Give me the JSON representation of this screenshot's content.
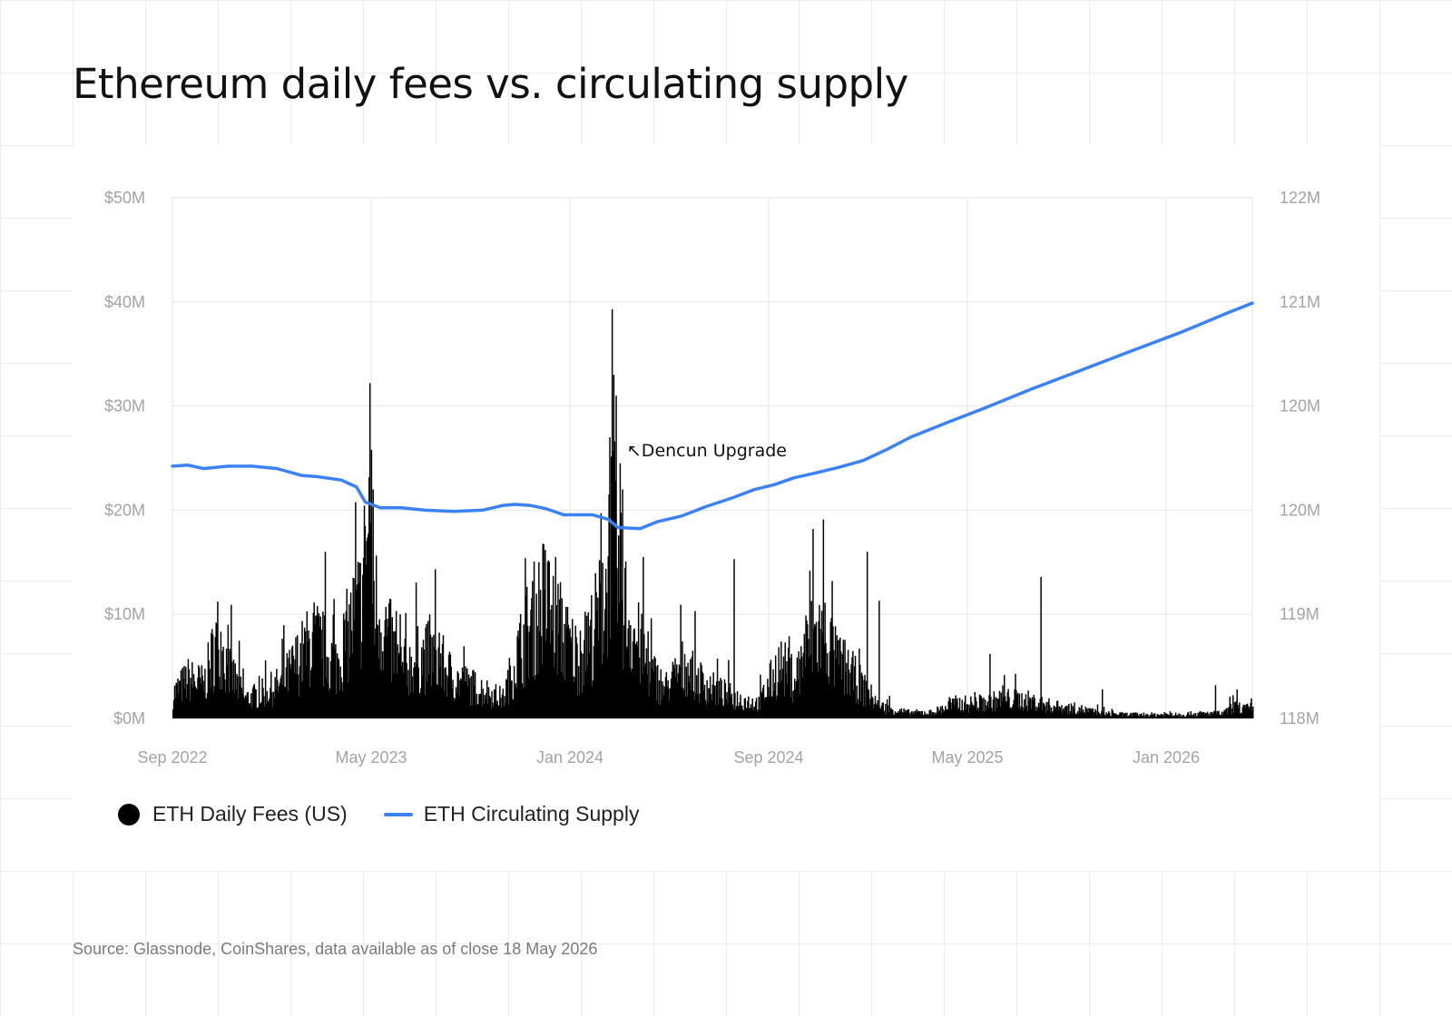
{
  "title": "Ethereum daily fees vs. circulating supply",
  "source": "Source: Glassnode, CoinShares, data available as of close 18 May 2026",
  "annotation": {
    "text": "↖Dencun Upgrade",
    "date": "2024-03-13"
  },
  "legend": {
    "fees_label": "ETH Daily Fees (US)",
    "supply_label": "ETH Circulating Supply"
  },
  "colors": {
    "fees": "#000000",
    "supply": "#3b82f6",
    "grid": "#e6e6e6",
    "tick": "#a3a3a3"
  },
  "chart_data": {
    "type": "bar+line",
    "x_ticks": [
      "Sep 2022",
      "May 2023",
      "Jan 2024",
      "Sep 2024",
      "May 2025",
      "Jan 2026"
    ],
    "x_range": [
      "2022-09-01",
      "2026-05-18"
    ],
    "y_left": {
      "label": "",
      "ticks": [
        "$0M",
        "$10M",
        "$20M",
        "$30M",
        "$40M",
        "$50M"
      ],
      "range": [
        0,
        50
      ]
    },
    "y_right": {
      "label": "",
      "ticks": [
        "118M",
        "119M",
        "120M",
        "120M",
        "121M",
        "122M"
      ],
      "range": [
        118,
        122.5
      ]
    },
    "grid": true,
    "legend_position": "bottom-left",
    "series": [
      {
        "name": "ETH Daily Fees (US)",
        "type": "bar",
        "axis": "left",
        "unit": "$M",
        "keypoints": [
          [
            "2022-09-01",
            2.5
          ],
          [
            "2022-09-20",
            4.0
          ],
          [
            "2022-10-10",
            3.5
          ],
          [
            "2022-10-28",
            8.5
          ],
          [
            "2022-11-10",
            5.0
          ],
          [
            "2022-12-01",
            2.0
          ],
          [
            "2022-12-20",
            2.5
          ],
          [
            "2023-01-15",
            3.5
          ],
          [
            "2023-02-05",
            6.0
          ],
          [
            "2023-02-25",
            8.0
          ],
          [
            "2023-03-15",
            6.5
          ],
          [
            "2023-03-25",
            5.5
          ],
          [
            "2023-04-10",
            9.0
          ],
          [
            "2023-04-25",
            12.0
          ],
          [
            "2023-05-05",
            20.0
          ],
          [
            "2023-05-12",
            12.0
          ],
          [
            "2023-05-25",
            9.0
          ],
          [
            "2023-06-15",
            5.0
          ],
          [
            "2023-07-05",
            6.0
          ],
          [
            "2023-07-25",
            6.5
          ],
          [
            "2023-08-20",
            4.0
          ],
          [
            "2023-09-20",
            3.0
          ],
          [
            "2023-10-20",
            2.0
          ],
          [
            "2023-11-05",
            6.0
          ],
          [
            "2023-11-20",
            9.0
          ],
          [
            "2023-12-10",
            12.0
          ],
          [
            "2023-12-25",
            10.0
          ],
          [
            "2024-01-10",
            7.5
          ],
          [
            "2024-01-25",
            6.0
          ],
          [
            "2024-02-10",
            9.0
          ],
          [
            "2024-02-25",
            12.0
          ],
          [
            "2024-03-05",
            20.0
          ],
          [
            "2024-03-12",
            15.0
          ],
          [
            "2024-03-22",
            11.0
          ],
          [
            "2024-04-05",
            8.0
          ],
          [
            "2024-04-20",
            5.0
          ],
          [
            "2024-05-10",
            3.0
          ],
          [
            "2024-06-05",
            5.5
          ],
          [
            "2024-06-20",
            4.0
          ],
          [
            "2024-07-10",
            3.0
          ],
          [
            "2024-08-10",
            2.0
          ],
          [
            "2024-09-05",
            1.5
          ],
          [
            "2024-10-01",
            5.5
          ],
          [
            "2024-10-20",
            4.0
          ],
          [
            "2024-11-10",
            8.0
          ],
          [
            "2024-11-25",
            9.0
          ],
          [
            "2024-12-10",
            6.0
          ],
          [
            "2024-12-25",
            5.0
          ],
          [
            "2025-01-15",
            3.0
          ],
          [
            "2025-02-05",
            1.2
          ],
          [
            "2025-03-10",
            0.6
          ],
          [
            "2025-04-10",
            0.6
          ],
          [
            "2025-05-10",
            1.5
          ],
          [
            "2025-06-10",
            1.5
          ],
          [
            "2025-07-10",
            2.0
          ],
          [
            "2025-08-10",
            1.8
          ],
          [
            "2025-09-10",
            1.2
          ],
          [
            "2025-10-10",
            1.0
          ],
          [
            "2025-11-10",
            0.5
          ],
          [
            "2025-12-10",
            0.4
          ],
          [
            "2026-01-10",
            0.4
          ],
          [
            "2026-02-10",
            0.4
          ],
          [
            "2026-03-10",
            0.5
          ],
          [
            "2026-04-10",
            0.5
          ],
          [
            "2026-04-25",
            1.2
          ],
          [
            "2026-05-10",
            1.0
          ],
          [
            "2026-05-18",
            0.8
          ]
        ],
        "spikes": [
          [
            "2023-05-06",
            32.2
          ],
          [
            "2023-05-08",
            25.8
          ],
          [
            "2023-05-10",
            22.0
          ],
          [
            "2023-04-30",
            18.5
          ],
          [
            "2023-03-11",
            16.0
          ],
          [
            "2023-04-22",
            13.0
          ],
          [
            "2023-07-20",
            10.0
          ],
          [
            "2022-11-09",
            9.0
          ],
          [
            "2024-03-05",
            39.3
          ],
          [
            "2024-03-07",
            33.0
          ],
          [
            "2024-03-10",
            31.0
          ],
          [
            "2024-03-02",
            27.0
          ],
          [
            "2024-03-15",
            24.5
          ],
          [
            "2024-03-18",
            22.0
          ],
          [
            "2024-02-20",
            19.7
          ],
          [
            "2024-04-13",
            15.5
          ],
          [
            "2023-12-16",
            15.2
          ],
          [
            "2023-12-25",
            15.5
          ],
          [
            "2024-08-05",
            15.3
          ],
          [
            "2024-11-12",
            18.2
          ],
          [
            "2024-12-06",
            13.2
          ],
          [
            "2025-01-19",
            16.0
          ],
          [
            "2025-02-03",
            11.3
          ],
          [
            "2025-08-25",
            13.6
          ],
          [
            "2025-06-22",
            6.2
          ],
          [
            "2025-11-10",
            2.8
          ],
          [
            "2026-04-01",
            3.2
          ],
          [
            "2026-04-28",
            2.8
          ]
        ]
      },
      {
        "name": "ETH Circulating Supply",
        "type": "line",
        "axis": "right",
        "unit": "M ETH",
        "values": [
          [
            "2022-09-01",
            120.18
          ],
          [
            "2022-09-20",
            120.19
          ],
          [
            "2022-10-10",
            120.16
          ],
          [
            "2022-11-10",
            120.18
          ],
          [
            "2022-12-10",
            120.18
          ],
          [
            "2023-01-10",
            120.16
          ],
          [
            "2023-02-10",
            120.1
          ],
          [
            "2023-03-01",
            120.09
          ],
          [
            "2023-04-01",
            120.06
          ],
          [
            "2023-04-20",
            120.0
          ],
          [
            "2023-05-01",
            119.87
          ],
          [
            "2023-05-20",
            119.82
          ],
          [
            "2023-06-15",
            119.82
          ],
          [
            "2023-07-15",
            119.8
          ],
          [
            "2023-08-20",
            119.79
          ],
          [
            "2023-09-25",
            119.8
          ],
          [
            "2023-10-20",
            119.84
          ],
          [
            "2023-11-05",
            119.85
          ],
          [
            "2023-11-25",
            119.84
          ],
          [
            "2023-12-15",
            119.81
          ],
          [
            "2024-01-05",
            119.76
          ],
          [
            "2024-01-20",
            119.76
          ],
          [
            "2024-02-10",
            119.76
          ],
          [
            "2024-03-01",
            119.72
          ],
          [
            "2024-03-13",
            119.65
          ],
          [
            "2024-04-10",
            119.64
          ],
          [
            "2024-05-01",
            119.7
          ],
          [
            "2024-06-01",
            119.75
          ],
          [
            "2024-07-01",
            119.83
          ],
          [
            "2024-08-05",
            119.91
          ],
          [
            "2024-09-01",
            119.98
          ],
          [
            "2024-09-25",
            120.02
          ],
          [
            "2024-10-20",
            120.08
          ],
          [
            "2024-11-15",
            120.12
          ],
          [
            "2024-12-15",
            120.17
          ],
          [
            "2025-01-15",
            120.23
          ],
          [
            "2025-02-15",
            120.33
          ],
          [
            "2025-03-15",
            120.43
          ],
          [
            "2025-05-01",
            120.56
          ],
          [
            "2025-06-15",
            120.68
          ],
          [
            "2025-08-15",
            120.85
          ],
          [
            "2025-10-15",
            121.01
          ],
          [
            "2025-12-15",
            121.17
          ],
          [
            "2026-02-15",
            121.33
          ],
          [
            "2026-04-15",
            121.5
          ],
          [
            "2026-05-18",
            121.59
          ]
        ]
      }
    ]
  }
}
